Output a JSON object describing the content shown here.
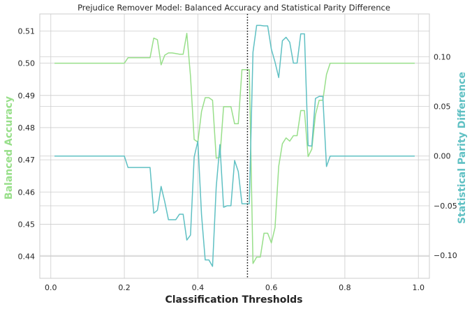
{
  "chart_data": {
    "type": "line",
    "title": "Prejudice Remover Model: Balanced Accuracy and Statistical Parity Difference",
    "xlabel": "Classification Thresholds",
    "ylabel_left": "Balanced Accuracy",
    "ylabel_right": "Statistical Parity Difference",
    "xlim": [
      -0.03,
      1.03
    ],
    "ylim_left": [
      0.4332,
      0.5153
    ],
    "ylim_right": [
      -0.123,
      0.143
    ],
    "x_ticks": [
      0.0,
      0.2,
      0.4,
      0.6,
      0.8,
      1.0
    ],
    "x_tick_labels": [
      "0.0",
      "0.2",
      "0.4",
      "0.6",
      "0.8",
      "1.0"
    ],
    "y_left_ticks": [
      0.44,
      0.45,
      0.46,
      0.47,
      0.48,
      0.49,
      0.5,
      0.51
    ],
    "y_left_tick_labels": [
      "0.44",
      "0.45",
      "0.46",
      "0.47",
      "0.48",
      "0.49",
      "0.50",
      "0.51"
    ],
    "y_right_ticks": [
      -0.1,
      -0.05,
      0.0,
      0.05,
      0.1
    ],
    "y_right_tick_labels": [
      "−0.10",
      "−0.05",
      "0.00",
      "0.05",
      "0.10"
    ],
    "grid": true,
    "vline": {
      "x": 0.535,
      "style": "dotted",
      "color": "#000000"
    },
    "series": [
      {
        "axis": "left",
        "color": "#98df8a",
        "x": [
          0.01,
          0.02,
          0.03,
          0.04,
          0.05,
          0.06,
          0.07,
          0.08,
          0.09,
          0.1,
          0.11,
          0.12,
          0.13,
          0.14,
          0.15,
          0.16,
          0.17,
          0.18,
          0.19,
          0.2,
          0.21,
          0.22,
          0.23,
          0.24,
          0.25,
          0.26,
          0.27,
          0.28,
          0.29,
          0.3,
          0.31,
          0.32,
          0.33,
          0.34,
          0.35,
          0.36,
          0.37,
          0.38,
          0.39,
          0.4,
          0.41,
          0.42,
          0.43,
          0.44,
          0.45,
          0.46,
          0.47,
          0.48,
          0.49,
          0.5,
          0.51,
          0.52,
          0.53,
          0.54,
          0.55,
          0.56,
          0.57,
          0.58,
          0.59,
          0.6,
          0.61,
          0.62,
          0.63,
          0.64,
          0.65,
          0.66,
          0.67,
          0.68,
          0.69,
          0.7,
          0.71,
          0.72,
          0.73,
          0.74,
          0.75,
          0.76,
          0.77,
          0.78,
          0.79,
          0.8,
          0.81,
          0.82,
          0.83,
          0.84,
          0.85,
          0.86,
          0.87,
          0.88,
          0.89,
          0.9,
          0.91,
          0.92,
          0.93,
          0.94,
          0.95,
          0.96,
          0.97,
          0.98,
          0.99
        ],
        "values": [
          0.5,
          0.5,
          0.5,
          0.5,
          0.5,
          0.5,
          0.5,
          0.5,
          0.5,
          0.5,
          0.5,
          0.5,
          0.5,
          0.5,
          0.5,
          0.5,
          0.5,
          0.5,
          0.5,
          0.5,
          0.5017,
          0.5017,
          0.5017,
          0.5017,
          0.5017,
          0.5017,
          0.5017,
          0.5078,
          0.5073,
          0.4995,
          0.5025,
          0.5032,
          0.5032,
          0.503,
          0.5028,
          0.5028,
          0.5093,
          0.496,
          0.4763,
          0.4755,
          0.485,
          0.4893,
          0.4893,
          0.4885,
          0.4705,
          0.4708,
          0.4865,
          0.4865,
          0.4865,
          0.4812,
          0.4812,
          0.498,
          0.498,
          0.498,
          0.4378,
          0.4398,
          0.4398,
          0.4472,
          0.4472,
          0.4442,
          0.449,
          0.468,
          0.475,
          0.4768,
          0.4758,
          0.4775,
          0.4775,
          0.4853,
          0.4853,
          0.471,
          0.4733,
          0.484,
          0.4885,
          0.4885,
          0.4965,
          0.5,
          0.5,
          0.5,
          0.5,
          0.5,
          0.5,
          0.5,
          0.5,
          0.5,
          0.5,
          0.5,
          0.5,
          0.5,
          0.5,
          0.5,
          0.5,
          0.5,
          0.5,
          0.5,
          0.5,
          0.5,
          0.5,
          0.5,
          0.5
        ]
      },
      {
        "axis": "right",
        "color": "#5fc0c3",
        "x": [
          0.01,
          0.02,
          0.03,
          0.04,
          0.05,
          0.06,
          0.07,
          0.08,
          0.09,
          0.1,
          0.11,
          0.12,
          0.13,
          0.14,
          0.15,
          0.16,
          0.17,
          0.18,
          0.19,
          0.2,
          0.21,
          0.22,
          0.23,
          0.24,
          0.25,
          0.26,
          0.27,
          0.28,
          0.29,
          0.3,
          0.31,
          0.32,
          0.33,
          0.34,
          0.35,
          0.36,
          0.37,
          0.38,
          0.39,
          0.4,
          0.41,
          0.42,
          0.43,
          0.44,
          0.45,
          0.46,
          0.47,
          0.48,
          0.49,
          0.5,
          0.51,
          0.52,
          0.53,
          0.54,
          0.55,
          0.56,
          0.57,
          0.58,
          0.59,
          0.6,
          0.61,
          0.62,
          0.63,
          0.64,
          0.65,
          0.66,
          0.67,
          0.68,
          0.69,
          0.7,
          0.71,
          0.72,
          0.73,
          0.74,
          0.75,
          0.76,
          0.77,
          0.78,
          0.79,
          0.8,
          0.81,
          0.82,
          0.83,
          0.84,
          0.85,
          0.86,
          0.87,
          0.88,
          0.89,
          0.9,
          0.91,
          0.92,
          0.93,
          0.94,
          0.95,
          0.96,
          0.97,
          0.98,
          0.99
        ],
        "values": [
          0.0,
          0.0,
          0.0,
          0.0,
          0.0,
          0.0,
          0.0,
          0.0,
          0.0,
          0.0,
          0.0,
          0.0,
          0.0,
          0.0,
          0.0,
          0.0,
          0.0,
          0.0,
          0.0,
          0.0,
          -0.0115,
          -0.0115,
          -0.0115,
          -0.0115,
          -0.0115,
          -0.0115,
          -0.0115,
          -0.0575,
          -0.0545,
          -0.0305,
          -0.046,
          -0.064,
          -0.064,
          -0.064,
          -0.0585,
          -0.0585,
          -0.0845,
          -0.0795,
          -0.001,
          0.015,
          -0.059,
          -0.1045,
          -0.1045,
          -0.111,
          -0.031,
          0.0115,
          -0.0515,
          -0.05,
          -0.05,
          -0.0045,
          -0.0155,
          -0.048,
          -0.048,
          -0.048,
          0.1045,
          0.1315,
          0.1315,
          0.131,
          0.131,
          0.1075,
          0.0945,
          0.079,
          0.116,
          0.1195,
          0.1145,
          0.0935,
          0.0935,
          0.123,
          0.123,
          0.0105,
          0.01,
          0.058,
          0.06,
          0.06,
          -0.0105,
          0.0,
          0.0,
          0.0,
          0.0,
          0.0,
          0.0,
          0.0,
          0.0,
          0.0,
          0.0,
          0.0,
          0.0,
          0.0,
          0.0,
          0.0,
          0.0,
          0.0,
          0.0,
          0.0,
          0.0,
          0.0,
          0.0,
          0.0,
          0.0
        ]
      }
    ]
  }
}
